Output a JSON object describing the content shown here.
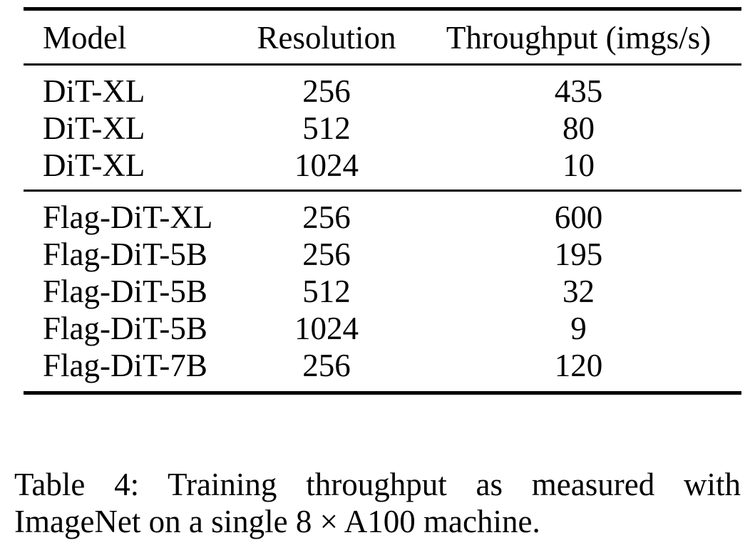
{
  "table": {
    "headers": {
      "model": "Model",
      "resolution": "Resolution",
      "throughput": "Throughput (imgs/s)"
    },
    "groups": [
      {
        "rows": [
          {
            "model": "DiT-XL",
            "resolution": "256",
            "throughput": "435"
          },
          {
            "model": "DiT-XL",
            "resolution": "512",
            "throughput": "80"
          },
          {
            "model": "DiT-XL",
            "resolution": "1024",
            "throughput": "10"
          }
        ]
      },
      {
        "rows": [
          {
            "model": "Flag-DiT-XL",
            "resolution": "256",
            "throughput": "600"
          },
          {
            "model": "Flag-DiT-5B",
            "resolution": "256",
            "throughput": "195"
          },
          {
            "model": "Flag-DiT-5B",
            "resolution": "512",
            "throughput": "32"
          },
          {
            "model": "Flag-DiT-5B",
            "resolution": "1024",
            "throughput": "9"
          },
          {
            "model": "Flag-DiT-7B",
            "resolution": "256",
            "throughput": "120"
          }
        ]
      }
    ]
  },
  "caption": {
    "line1": "Table 4:  Training throughput as measured with",
    "line2": "ImageNet on a single 8 × A100 machine."
  },
  "colors": {
    "text": "#000000",
    "background": "#ffffff",
    "rule": "#000000"
  }
}
